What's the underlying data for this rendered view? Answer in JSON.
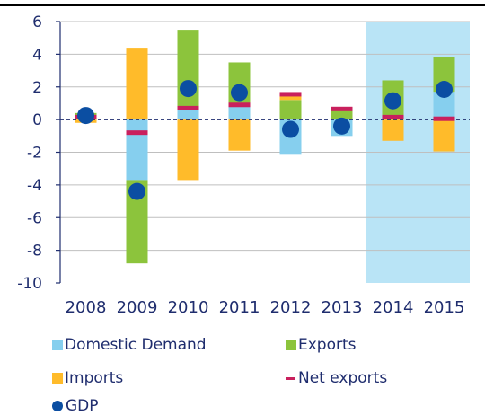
{
  "chart_data": {
    "type": "bar",
    "stacked": true,
    "title": "",
    "xlabel": "",
    "ylabel": "",
    "categories": [
      "2008",
      "2009",
      "2010",
      "2011",
      "2012",
      "2013",
      "2014",
      "2015"
    ],
    "ylim": [
      -10,
      6
    ],
    "yticks": [
      6,
      4,
      2,
      0,
      -2,
      -4,
      -6,
      -8,
      -10
    ],
    "grid": true,
    "forecast_highlight": [
      "2014",
      "2015"
    ],
    "series": [
      {
        "name": "Domestic Demand",
        "kind": "bar",
        "color": "#86cfee",
        "values": [
          0.05,
          -3.7,
          0.6,
          0.8,
          -2.1,
          -1.0,
          0.1,
          1.7
        ]
      },
      {
        "name": "Exports",
        "kind": "bar",
        "color": "#8cc43c",
        "values": [
          0.35,
          -5.1,
          4.9,
          2.7,
          1.2,
          0.55,
          2.3,
          2.1
        ]
      },
      {
        "name": "Imports",
        "kind": "bar",
        "color": "#ffbb2a",
        "values": [
          -0.2,
          4.4,
          -3.7,
          -1.9,
          0.45,
          0.15,
          -1.3,
          -1.95
        ]
      },
      {
        "name": "Net exports",
        "kind": "marker-line",
        "color": "#c9205d",
        "values": [
          0.15,
          -0.8,
          0.7,
          0.9,
          1.55,
          0.65,
          0.15,
          0.05
        ]
      },
      {
        "name": "GDP",
        "kind": "dot",
        "color": "#0b4ea2",
        "values": [
          0.25,
          -4.4,
          1.9,
          1.65,
          -0.6,
          -0.4,
          1.15,
          1.85
        ]
      }
    ]
  },
  "legend": {
    "domestic_demand": "Domestic Demand",
    "exports": "Exports",
    "imports": "Imports",
    "net_exports": "Net exports",
    "gdp": "GDP"
  }
}
